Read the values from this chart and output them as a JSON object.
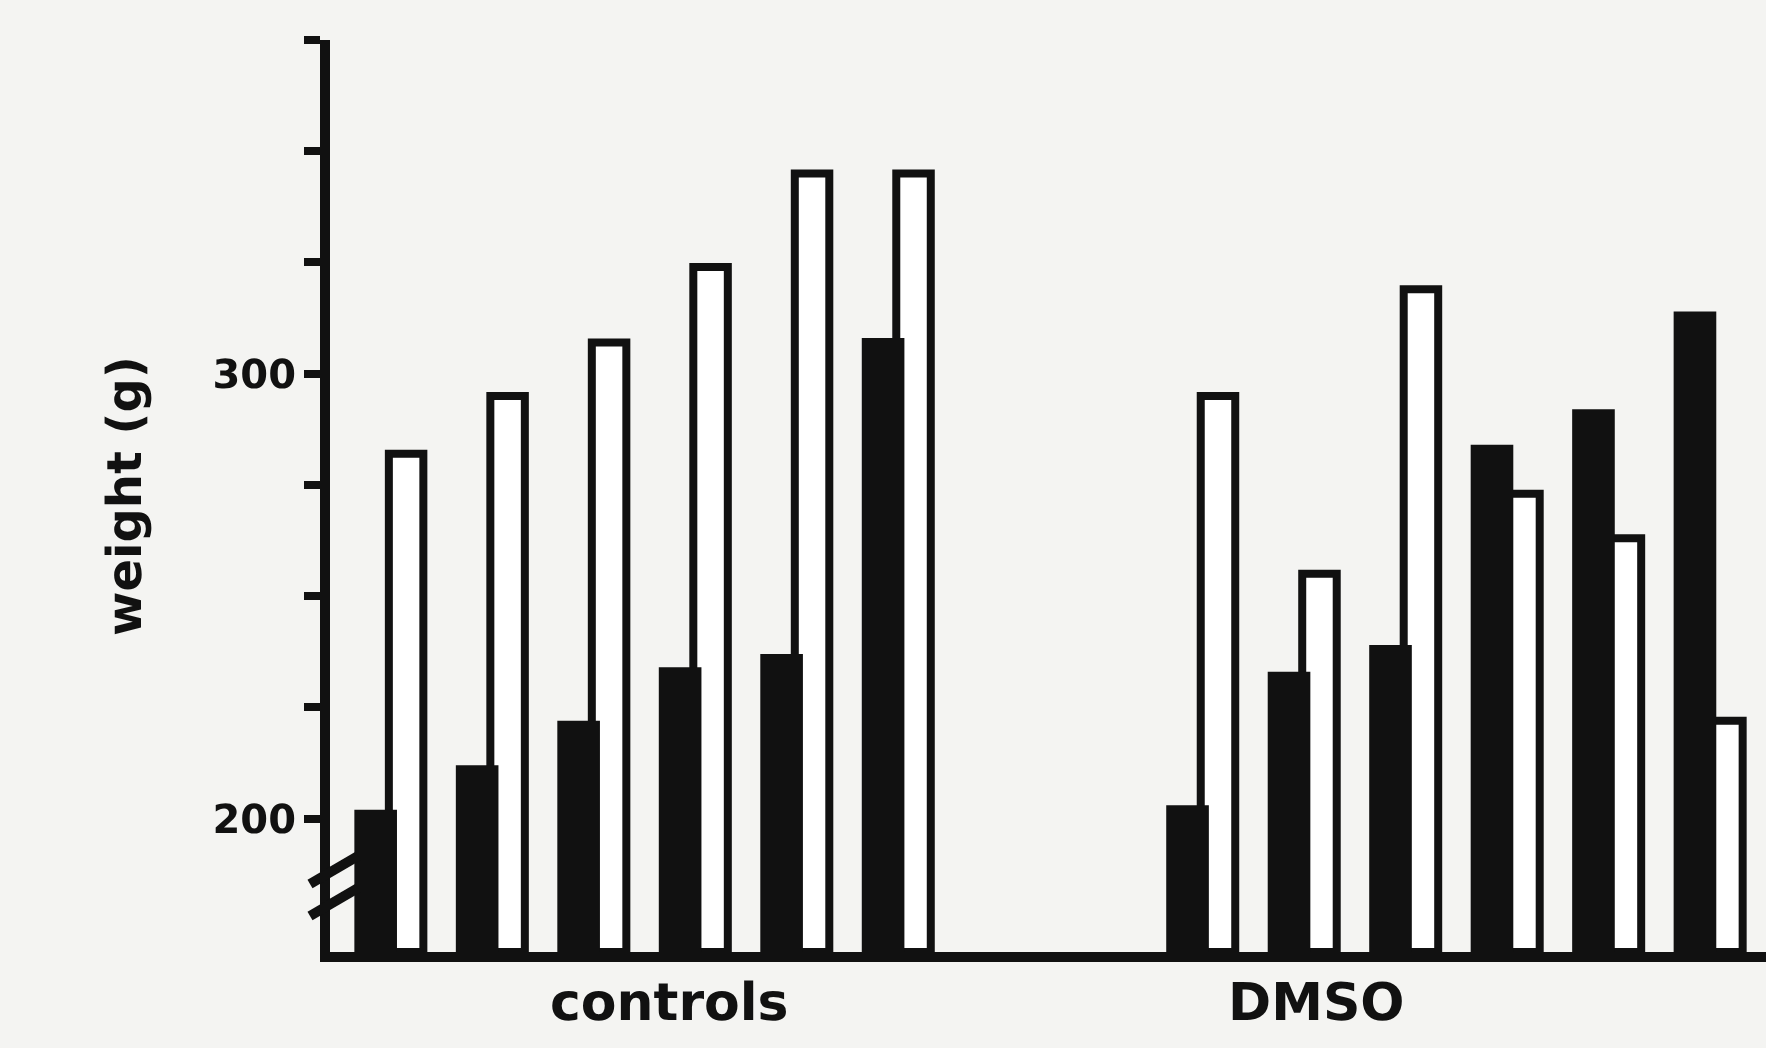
{
  "chart_data": {
    "type": "bar",
    "ylabel": "weight (g)",
    "categories": [
      null,
      null,
      null,
      null,
      null,
      null,
      null,
      null,
      null,
      null,
      null,
      null,
      null,
      null
    ],
    "series": [
      {
        "color": "#111111",
        "values": [
          202,
          212,
          222,
          234,
          237,
          308,
          null,
          null,
          203,
          233,
          239,
          284,
          292,
          314
        ]
      },
      {
        "color": "#ffffff",
        "values": [
          282,
          295,
          307,
          324,
          345,
          345,
          null,
          null,
          295,
          255,
          319,
          273,
          263,
          222
        ]
      }
    ],
    "ylim": [
      170,
      375
    ],
    "yticks": [
      200,
      {
        "value": 225,
        "label": null
      },
      {
        "value": 250,
        "label": null
      },
      {
        "value": 275,
        "label": null
      },
      300,
      {
        "value": 325,
        "label": null
      },
      {
        "value": 350,
        "label": null
      },
      {
        "value": 375,
        "label": null
      }
    ],
    "annotations": [
      "controls",
      "DMSO"
    ]
  }
}
